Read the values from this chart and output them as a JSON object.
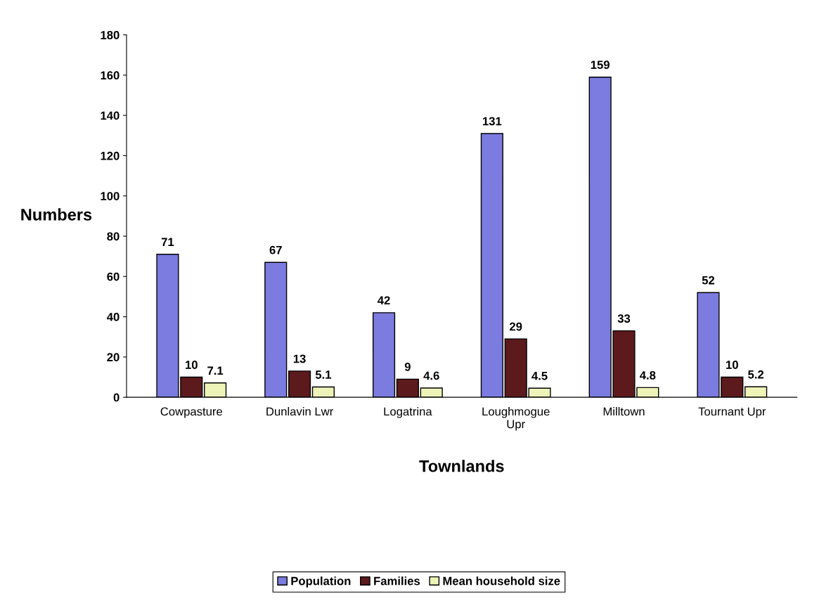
{
  "chart_data": {
    "type": "bar",
    "xlabel": "Townlands",
    "ylabel": "Numbers",
    "categories": [
      "Cowpasture",
      "Dunlavin Lwr",
      "Logatrina",
      "Loughmogue\nUpr",
      "Milltown",
      "Tournant Upr"
    ],
    "series": [
      {
        "name": "Population",
        "color": "#7b7be0",
        "values": [
          71,
          67,
          42,
          131,
          159,
          52
        ]
      },
      {
        "name": "Families",
        "color": "#5c1a1c",
        "values": [
          10,
          13,
          9,
          29,
          33,
          10
        ]
      },
      {
        "name": "Mean household size",
        "color": "#eef3b8",
        "values": [
          7.1,
          5.1,
          4.6,
          4.5,
          4.8,
          5.2
        ]
      }
    ],
    "ylim": [
      0,
      180
    ],
    "yticks": [
      0,
      20,
      40,
      60,
      80,
      100,
      120,
      140,
      160,
      180
    ],
    "data_labels": true,
    "grid": false,
    "legend": "bottom"
  }
}
